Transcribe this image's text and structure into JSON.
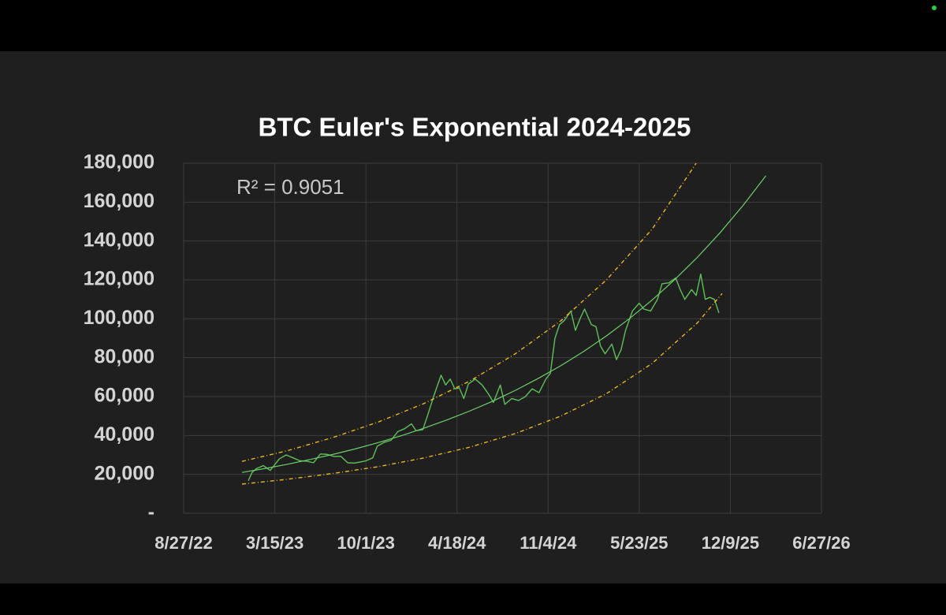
{
  "chart_data": {
    "type": "line",
    "title": "BTC Euler's Exponential 2024-2025",
    "annotation": "R² = 0.9051",
    "xlim": [
      44800,
      46200
    ],
    "xticks": [
      {
        "value": 44800,
        "label": "8/27/22"
      },
      {
        "value": 45000,
        "label": "3/15/23"
      },
      {
        "value": 45200,
        "label": "10/1/23"
      },
      {
        "value": 45400,
        "label": "4/18/24"
      },
      {
        "value": 45600,
        "label": "11/4/24"
      },
      {
        "value": 45800,
        "label": "5/23/25"
      },
      {
        "value": 46000,
        "label": "12/9/25"
      },
      {
        "value": 46200,
        "label": "6/27/26"
      }
    ],
    "ylim": [
      0,
      180000
    ],
    "yticks": [
      {
        "value": 0,
        "label": "-"
      },
      {
        "value": 20000,
        "label": "20,000"
      },
      {
        "value": 40000,
        "label": "40,000"
      },
      {
        "value": 60000,
        "label": "60,000"
      },
      {
        "value": 80000,
        "label": "80,000"
      },
      {
        "value": 100000,
        "label": "100,000"
      },
      {
        "value": 120000,
        "label": "120,000"
      },
      {
        "value": 140000,
        "label": "140,000"
      },
      {
        "value": 160000,
        "label": "160,000"
      },
      {
        "value": 180000,
        "label": "180,000"
      }
    ],
    "grid": true,
    "series": [
      {
        "color": "#5fbf5a",
        "dashed": false,
        "width": 1.4,
        "x": [
          44942,
          44950,
          44960,
          44975,
          44990,
          45000,
          45010,
          45025,
          45040,
          45055,
          45070,
          45085,
          45100,
          45115,
          45130,
          45145,
          45160,
          45175,
          45190,
          45200,
          45215,
          45225,
          45240,
          45255,
          45270,
          45285,
          45300,
          45310,
          45325,
          45335,
          45350,
          45365,
          45375,
          45385,
          45395,
          45405,
          45415,
          45425,
          45440,
          45455,
          45470,
          45480,
          45495,
          45505,
          45520,
          45535,
          45550,
          45565,
          45580,
          45595,
          45605,
          45615,
          45625,
          45635,
          45650,
          45660,
          45670,
          45680,
          45695,
          45705,
          45715,
          45725,
          45740,
          45750,
          45760,
          45770,
          45785,
          45800,
          45810,
          45825,
          45840,
          45850,
          45865,
          45880,
          45890,
          45900,
          45915,
          45925,
          45935,
          45945,
          45955,
          45965,
          45975
        ],
        "values": [
          16800,
          21000,
          23000,
          24500,
          22000,
          25000,
          28000,
          30000,
          28500,
          27000,
          26800,
          26000,
          30500,
          30300,
          29200,
          29300,
          26000,
          25800,
          26500,
          27000,
          28500,
          34500,
          36500,
          37500,
          42000,
          43500,
          46000,
          42500,
          43000,
          50000,
          61000,
          71000,
          66000,
          69000,
          64000,
          64500,
          59000,
          66500,
          69000,
          66000,
          61000,
          57000,
          66000,
          56000,
          59000,
          58000,
          60000,
          64000,
          62000,
          69000,
          72000,
          90000,
          97000,
          99000,
          104000,
          94000,
          100000,
          105000,
          97000,
          96000,
          86000,
          82000,
          87000,
          79000,
          84000,
          94000,
          104000,
          108000,
          105000,
          104000,
          110000,
          118000,
          118500,
          121000,
          115000,
          110000,
          115000,
          112000,
          123000,
          110000,
          111000,
          110000,
          103000
        ]
      },
      {
        "color": "#6ccf6a",
        "dashed": false,
        "width": 1.2,
        "x": [
          44928,
          44978,
          45028,
          45078,
          45128,
          45178,
          45228,
          45278,
          45328,
          45378,
          45428,
          45478,
          45528,
          45578,
          45628,
          45678,
          45728,
          45778,
          45828,
          45878,
          45928,
          45978,
          46028,
          46078
        ],
        "values": [
          21000,
          23000,
          25200,
          27700,
          30300,
          33200,
          36400,
          39900,
          43800,
          48000,
          52600,
          57600,
          63200,
          69300,
          75900,
          83200,
          91200,
          100000,
          109600,
          120200,
          131700,
          144400,
          158300,
          173500
        ]
      },
      {
        "color": "#e8b923",
        "dashed": true,
        "width": 1.4,
        "x": [
          44928,
          45028,
          45128,
          45228,
          45328,
          45428,
          45528,
          45628,
          45728,
          45828,
          45925
        ],
        "values": [
          26700,
          32200,
          39000,
          47000,
          56500,
          68000,
          82000,
          99000,
          120000,
          146000,
          180000
        ]
      },
      {
        "color": "#e8b923",
        "dashed": true,
        "width": 1.4,
        "x": [
          44928,
          45028,
          45128,
          45228,
          45328,
          45428,
          45528,
          45628,
          45728,
          45828,
          45928,
          45982
        ],
        "values": [
          15000,
          17500,
          20500,
          24000,
          28500,
          34000,
          41000,
          50000,
          61500,
          77000,
          98000,
          113000
        ]
      }
    ]
  }
}
